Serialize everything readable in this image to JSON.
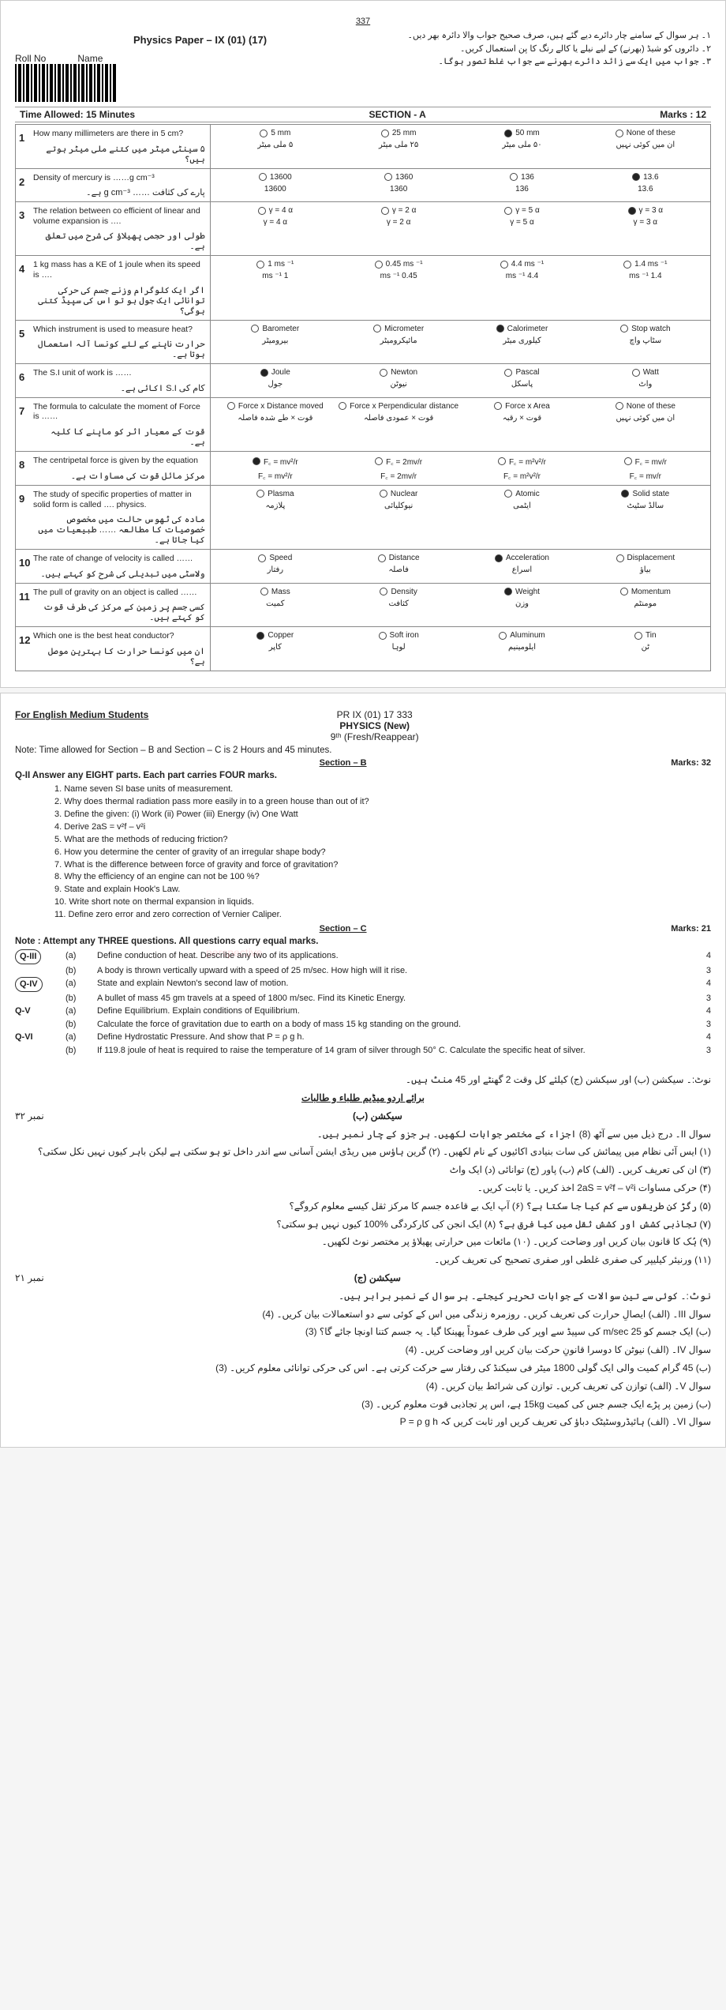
{
  "page1": {
    "topNum": "337",
    "rollLabel": "Roll No",
    "nameLabel": "Name",
    "paperTitle": "Physics Paper – IX (01) (17)",
    "urduInstr": [
      "۱۔ ہر سوال کے سامنے چار دائرے دیے گئے ہیں، صرف صحیح جواب والا دائرہ بھر دیں۔",
      "۲۔ دائروں کو شیڈ (بھرنے) کے لیے نیلے یا کالے رنگ کا پن استعمال کریں۔",
      "۳۔ جواب میں ایک سے زائد دائرے بھرنے سے جواب غلط تصور ہوگا۔"
    ],
    "timeAllowed": "Time Allowed: 15 Minutes",
    "sectionA": "SECTION - A",
    "marksA": "Marks : 12",
    "mcqs": [
      {
        "n": "1",
        "en": "How many millimeters are there in 5 cm?",
        "ur": "۵ سینٹی میٹر میں کتنے ملی میٹر ہوتے ہیں؟",
        "opts": [
          {
            "en": "5 mm",
            "ur": "۵ ملی میٹر"
          },
          {
            "en": "25 mm",
            "ur": "۲۵ ملی میٹر"
          },
          {
            "en": "50 mm",
            "ur": "۵۰ ملی میٹر"
          },
          {
            "en": "None of these",
            "ur": "ان میں کوئی نہیں"
          }
        ],
        "filled": 2
      },
      {
        "n": "2",
        "en": "Density of mercury is ……g cm⁻³",
        "ur": "پارے کی کثافت …… g cm⁻³ ہے۔",
        "opts": [
          {
            "en": "13600",
            "ur": "13600"
          },
          {
            "en": "1360",
            "ur": "1360"
          },
          {
            "en": "136",
            "ur": "136"
          },
          {
            "en": "13.6",
            "ur": "13.6"
          }
        ],
        "filled": 3
      },
      {
        "n": "3",
        "en": "The relation between co efficient of linear and volume expansion is ….",
        "ur": "طولی اور حجمی پھیلاؤ کی شرح میں تعلق ہے۔",
        "opts": [
          {
            "en": "γ = 4 α",
            "ur": "γ = 4 α"
          },
          {
            "en": "γ = 2 α",
            "ur": "γ = 2 α"
          },
          {
            "en": "γ = 5 α",
            "ur": "γ = 5 α"
          },
          {
            "en": "γ = 3 α",
            "ur": "γ = 3 α"
          }
        ],
        "filled": 3
      },
      {
        "n": "4",
        "en": "1 kg mass has a KE of 1 joule when its speed is ….",
        "ur": "اگر ایک کلوگرام وزنے جسم کی حرکی توانائی ایک جول ہو تو اس کی سپیڈ کتنی ہوگی؟",
        "opts": [
          {
            "en": "1 ms ⁻¹",
            "ur": "1 ms ⁻¹"
          },
          {
            "en": "0.45 ms ⁻¹",
            "ur": "0.45 ms ⁻¹"
          },
          {
            "en": "4.4 ms ⁻¹",
            "ur": "4.4 ms ⁻¹"
          },
          {
            "en": "1.4 ms ⁻¹",
            "ur": "1.4 ms ⁻¹"
          }
        ],
        "filled": -1
      },
      {
        "n": "5",
        "en": "Which instrument is used to measure heat?",
        "ur": "حرارت ناپنے کے لئے کونسا آلہ استعمال ہوتا ہے۔",
        "opts": [
          {
            "en": "Barometer",
            "ur": "بیرومیٹر"
          },
          {
            "en": "Micrometer",
            "ur": "مائیکرومیٹر"
          },
          {
            "en": "Calorimeter",
            "ur": "کیلوری میٹر"
          },
          {
            "en": "Stop watch",
            "ur": "سٹاپ واچ"
          }
        ],
        "filled": 2
      },
      {
        "n": "6",
        "en": "The S.I unit of work is ……",
        "ur": "کام کی S.I اکائی ہے۔",
        "opts": [
          {
            "en": "Joule",
            "ur": "جول"
          },
          {
            "en": "Newton",
            "ur": "نیوٹن"
          },
          {
            "en": "Pascal",
            "ur": "پاسکل"
          },
          {
            "en": "Watt",
            "ur": "واٹ"
          }
        ],
        "filled": 0
      },
      {
        "n": "7",
        "en": "The formula to calculate the moment of Force is ……",
        "ur": "قوت کے معیار اثر کو ماپنے کا کلیہ ہے۔",
        "opts": [
          {
            "en": "Force x Distance moved",
            "ur": "قوت × طے شدہ فاصلہ"
          },
          {
            "en": "Force x Perpendicular distance",
            "ur": "قوت × عمودی فاصلہ"
          },
          {
            "en": "Force x Area",
            "ur": "قوت × رقبہ"
          },
          {
            "en": "None of these",
            "ur": "ان میں کوئی نہیں"
          }
        ],
        "filled": -1
      },
      {
        "n": "8",
        "en": "The centripetal force is given by the equation",
        "ur": "مرکز مائل قوت کی مساوات ہے۔",
        "opts": [
          {
            "en": "F꜀ = mv²/r",
            "ur": "F꜀ = mv²/r"
          },
          {
            "en": "F꜀ = 2mv/r",
            "ur": "F꜀ = 2mv/r"
          },
          {
            "en": "F꜀ = m²v²/r",
            "ur": "F꜀ = m²v²/r"
          },
          {
            "en": "F꜀ = mv/r",
            "ur": "F꜀ = mv/r"
          }
        ],
        "filled": 0
      },
      {
        "n": "9",
        "en": "The study of specific properties of matter in solid form is called …. physics.",
        "ur": "مادہ کی ٹھوس حالت میں مخصوص خصوصیات کا مطالعہ …… طبیعیات میں کیا جاتا ہے۔",
        "opts": [
          {
            "en": "Plasma",
            "ur": "پلازمہ"
          },
          {
            "en": "Nuclear",
            "ur": "نیوکلیائی"
          },
          {
            "en": "Atomic",
            "ur": "ایٹمی"
          },
          {
            "en": "Solid state",
            "ur": "سالڈ سٹیٹ"
          }
        ],
        "filled": 3
      },
      {
        "n": "10",
        "en": "The rate of change of velocity is called ……",
        "ur": "ولاسٹی میں تبدیلی کی شرح کو کہتے ہیں۔",
        "opts": [
          {
            "en": "Speed",
            "ur": "رفتار"
          },
          {
            "en": "Distance",
            "ur": "فاصلہ"
          },
          {
            "en": "Acceleration",
            "ur": "اسراع"
          },
          {
            "en": "Displacement",
            "ur": "بیاؤ"
          }
        ],
        "filled": 2
      },
      {
        "n": "11",
        "en": "The pull of gravity on an object is called ……",
        "ur": "کسی جسم پر زمین کے مرکز کی طرف قوت کو کہتے ہیں۔",
        "opts": [
          {
            "en": "Mass",
            "ur": "کمیت"
          },
          {
            "en": "Density",
            "ur": "کثافت"
          },
          {
            "en": "Weight",
            "ur": "وزن"
          },
          {
            "en": "Momentum",
            "ur": "مومنٹم"
          }
        ],
        "filled": 2
      },
      {
        "n": "12",
        "en": "Which one is the best heat conductor?",
        "ur": "ان میں کونسا حرارت کا بہترین موصل ہے؟",
        "opts": [
          {
            "en": "Copper",
            "ur": "کاپر"
          },
          {
            "en": "Soft iron",
            "ur": "لوہا"
          },
          {
            "en": "Aluminum",
            "ur": "ایلومینیم"
          },
          {
            "en": "Tin",
            "ur": "ٹن"
          }
        ],
        "filled": 0
      }
    ]
  },
  "page2": {
    "code": "PR IX (01) 17   333",
    "forEnglish": "For English Medium Students",
    "title": "PHYSICS (New)",
    "sub": "9ᵗʰ (Fresh/Reappear)",
    "noteTime": "Note:   Time allowed for Section – B and Section – C is 2 Hours and 45 minutes.",
    "secB": "Section – B",
    "marksB": "Marks:  32",
    "q2": "Q-II    Answer any EIGHT parts. Each part carries FOUR marks.",
    "q2parts": [
      "1.     Name seven SI base units of measurement.",
      "2.     Why does thermal radiation pass more easily in to a green house than out of it?",
      "3.     Define the given: (i) Work   (ii) Power   (iii) Energy   (iv) One Watt",
      "4.     Derive  2aS = v²f – v²i",
      "5.     What are the methods of reducing friction?",
      "6.     How you determine the center of gravity of an irregular shape body?",
      "7.     What is the difference between force of gravity and force of gravitation?",
      "8.     Why the efficiency of an engine can not be 100 %?",
      "9.     State and explain Hook's Law.",
      "10.   Write short note on thermal expansion in liquids.",
      "11.   Define zero error and zero correction of Vernier Caliper."
    ],
    "secC": "Section – C",
    "marksC": "Marks:  21",
    "noteC": "Note : Attempt any THREE questions. All questions carry equal marks.",
    "secCRows": [
      {
        "lbl": "Q-III",
        "circ": true,
        "sub": "(a)",
        "txt": "Define conduction of heat. Describe any two of its applications.",
        "mk": "4"
      },
      {
        "lbl": "",
        "sub": "(b)",
        "txt": "A body is thrown vertically upward with a speed of 25 m/sec. How high will it rise.",
        "mk": "3"
      },
      {
        "lbl": "Q-IV",
        "circ": true,
        "sub": "(a)",
        "txt": "State and explain Newton's second law of motion.",
        "mk": "4"
      },
      {
        "lbl": "",
        "sub": "(b)",
        "txt": "A bullet of mass 45 gm travels at a speed of 1800 m/sec. Find its Kinetic Energy.",
        "mk": "3"
      },
      {
        "lbl": "Q-V",
        "sub": "(a)",
        "txt": "Define Equilibrium. Explain conditions of Equilibrium.",
        "mk": "4"
      },
      {
        "lbl": "",
        "sub": "(b)",
        "txt": "Calculate the force of gravitation due to earth on a body of mass 15 kg standing on the ground.",
        "mk": "3"
      },
      {
        "lbl": "Q-VI",
        "sub": "(a)",
        "txt": "Define Hydrostatic Pressure. And show that  P = ρ g h.",
        "mk": "4"
      },
      {
        "lbl": "",
        "sub": "(b)",
        "txt": "If 119.8 joule of heat is required to raise the temperature of 14 gram of silver through 50° C. Calculate the specific heat of silver.",
        "mk": "3"
      }
    ],
    "urduNote": "نوٹ:۔   سیکشن (ب) اور سیکشن (ج) کیلئے کل وقت 2 گھنٹے اور 45 منٹ ہیں۔",
    "urduHeading": "برائے اردو میڈیم طلباء و طالبات",
    "urduSecB": "سیکشن (ب)",
    "urduMarksB": "نمبر ۳۲",
    "urduQ2": "سوال II۔  درج ذیل میں سے آٹھ (8) اجزاء کے مختصر جوابات لکھیں۔ ہر جزو کے چار نمبر ہیں۔",
    "urduQ2parts": [
      "(۱)   ایس آئی نظام میں پیمائش کی سات بنیادی اکائیوں کے نام لکھیں۔   (۲)   گرین ہاؤس میں ریڈی ایشن آسانی سے اندر داخل تو ہو سکتی ہے لیکن باہر کیوں نہیں نکل سکتی؟",
      "(۳)   ان کی تعریف کریں۔ (الف) کام  (ب) پاور  (ج) توانائی  (د) ایک واٹ",
      "(۴)   حرکی مساوات   2aS = v²f – v²i   اخذ کریں۔ یا ثابت کریں۔",
      "(۵)   رگڑ کن طریقوں سے کم کیا جا سکتا ہے؟       (۶)   آپ ایک بے قاعدہ جسم کا مرکز ثقل کیسے معلوم کروگے؟",
      "(۷)   تجاذبی کشش اور کشش ثقل میں کیا فرق ہے؟    (۸)   ایک انجن کی کارکردگی %100 کیوں نہیں ہو سکتی؟",
      "(۹)   ہُک کا قانون بیان کریں اور وضاحت کریں۔    (۱۰)   مائعات میں حرارتی پھیلاؤ پر مختصر نوٹ لکھیں۔",
      "(۱۱)  ورنیئر کیلیپر کی صفری غلطی اور صفری تصحیح کی تعریف کریں۔"
    ],
    "urduSecC": "سیکشن (ج)",
    "urduMarksC": "نمبر ۲۱",
    "urduNoteC": "نوٹ:۔   کوئی سے تین سوالات کے جوابات تحریر کیجئے۔ ہر سوال کے نمبر برابر ہیں۔",
    "urduSecCRows": [
      "سوال III۔ (الف)   ایصالِ حرارت کی تعریف کریں۔ روزمرہ زندگی میں اس کے کوئی سے دو استعمالات بیان کریں۔   (4)",
      "(ب)   ایک جسم کو 25 m/sec کی سپیڈ سے اوپر کی طرف عموداً پھینکا گیا۔ یہ جسم کتنا اونچا جائے گا؟   (3)",
      "سوال IV۔ (الف)   نیوٹن کا دوسرا قانونِ حرکت بیان کریں اور وضاحت کریں۔   (4)",
      "(ب)   45 گرام کمیت والی ایک گولی 1800 میٹر فی سیکنڈ کی رفتار سے حرکت کرتی ہے۔ اس کی حرکی توانائی معلوم کریں۔   (3)",
      "سوال V۔ (الف)   توازن کی تعریف کریں۔ توازن کی شرائط بیان کریں۔   (4)",
      "(ب)   زمین پر پڑے ایک جسم جس کی کمیت 15kg ہے، اس پر تجاذبی قوت معلوم کریں۔   (3)",
      "سوال VI۔ (الف)   ہائیڈروسٹیٹک دباؤ کی تعریف کریں اور ثابت کریں کہ   P = ρ g h"
    ]
  }
}
